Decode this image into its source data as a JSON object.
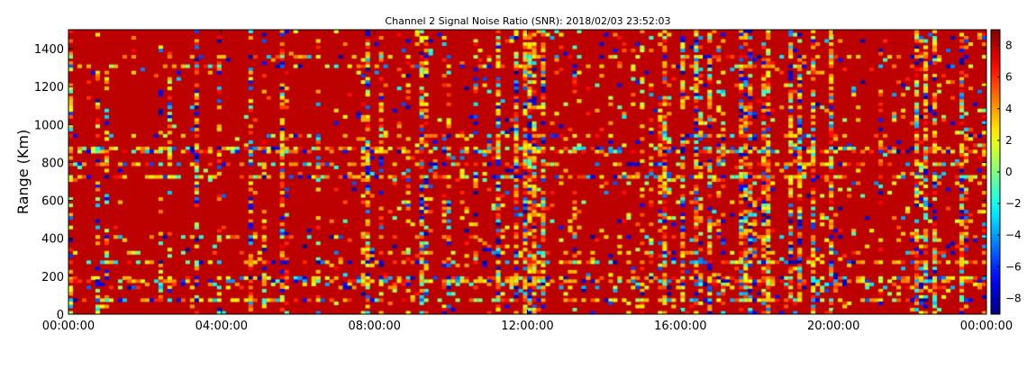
{
  "chart_data": {
    "type": "heatmap",
    "title": "Channel 2 Signal Noise Ratio (SNR): 2018/02/03 23:52:03",
    "xlabel": "",
    "ylabel": "Range (Km)",
    "x_ticks": [
      "00:00:00",
      "04:00:00",
      "08:00:00",
      "12:00:00",
      "16:00:00",
      "20:00:00",
      "00:00:00"
    ],
    "xlim": [
      "00:00:00",
      "24:00:00"
    ],
    "y_ticks": [
      0,
      200,
      400,
      600,
      800,
      1000,
      1200,
      1400
    ],
    "ylim": [
      0,
      1500
    ],
    "colorbar": {
      "colormap": "jet",
      "range": [
        -9,
        9
      ],
      "ticks": [
        8,
        6,
        4,
        2,
        0,
        -2,
        -4,
        -6,
        -8
      ],
      "tick_labels": [
        "8",
        "6",
        "4",
        "2",
        "0",
        "−2",
        "−4",
        "−6",
        "−8"
      ]
    },
    "grid": false,
    "dominant_value": "high (~8-9 SNR) across most of the field, with scattered low values in vertical time stripes and horizontal range bands"
  }
}
